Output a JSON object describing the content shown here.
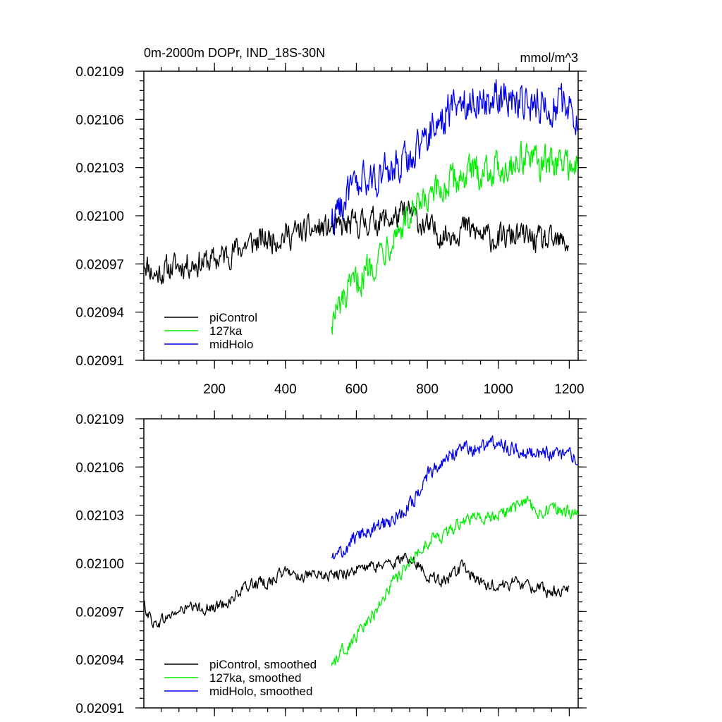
{
  "chart_data": [
    {
      "type": "line",
      "title": "0m-2000m DOPr, IND_18S-30N",
      "units": "mmol/m^3",
      "xlim": [
        1,
        1225
      ],
      "ylim": [
        0.02091,
        0.02109
      ],
      "xticks": [
        200,
        400,
        600,
        800,
        1000,
        1200
      ],
      "xtick_labels": [
        "200",
        "400",
        "600",
        "800",
        "1000",
        "1200"
      ],
      "yticks": [
        0.02091,
        0.02094,
        0.02097,
        0.021,
        0.02103,
        0.02106,
        0.02109
      ],
      "ytick_labels": [
        "0.02091",
        "0.02094",
        "0.02097",
        "0.02100",
        "0.02103",
        "0.02106",
        "0.02109"
      ],
      "legend_position": "bottom-left",
      "series": [
        {
          "name": "piControl",
          "color": "#000000",
          "noise": 8e-06,
          "x": [
            1,
            30,
            80,
            120,
            200,
            250,
            300,
            350,
            400,
            450,
            500,
            550,
            600,
            650,
            700,
            750,
            800,
            850,
            900,
            950,
            1000,
            1050,
            1100,
            1150,
            1200
          ],
          "values": [
            0.020973,
            0.020963,
            0.020968,
            0.02097,
            0.020972,
            0.020978,
            0.020983,
            0.020985,
            0.020988,
            0.02099,
            0.020992,
            0.020992,
            0.020995,
            0.020997,
            0.020998,
            0.021002,
            0.020992,
            0.020988,
            0.020993,
            0.020988,
            0.020985,
            0.020988,
            0.020985,
            0.020983,
            0.020983
          ]
        },
        {
          "name": "127ka",
          "color": "#00ee00",
          "noise": 1e-05,
          "x": [
            530,
            560,
            600,
            650,
            700,
            750,
            800,
            850,
            900,
            950,
            1000,
            1050,
            1080,
            1100,
            1150,
            1200,
            1225
          ],
          "values": [
            0.020935,
            0.020945,
            0.020958,
            0.020972,
            0.020988,
            0.020998,
            0.021008,
            0.021018,
            0.021025,
            0.021028,
            0.02103,
            0.021033,
            0.02104,
            0.021032,
            0.021033,
            0.021033,
            0.021029
          ]
        },
        {
          "name": "midHolo",
          "color": "#0000ee",
          "noise": 1.1e-05,
          "x": [
            530,
            560,
            600,
            650,
            700,
            750,
            800,
            850,
            900,
            950,
            1000,
            1050,
            1100,
            1150,
            1200,
            1225
          ],
          "values": [
            0.020998,
            0.021008,
            0.021018,
            0.021024,
            0.021028,
            0.021036,
            0.021052,
            0.021063,
            0.021072,
            0.021072,
            0.021075,
            0.021072,
            0.021069,
            0.021068,
            0.021068,
            0.021064
          ]
        }
      ]
    },
    {
      "type": "line",
      "title": "",
      "xlim": [
        1,
        1225
      ],
      "ylim": [
        0.02091,
        0.02109
      ],
      "xticks": [
        200,
        400,
        600,
        800,
        1000,
        1200
      ],
      "yticks": [
        0.02091,
        0.02094,
        0.02097,
        0.021,
        0.02103,
        0.02106,
        0.02109
      ],
      "ytick_labels": [
        "0.02091",
        "0.02094",
        "0.02097",
        "0.02100",
        "0.02103",
        "0.02106",
        "0.02109"
      ],
      "legend_position": "bottom-left",
      "series": [
        {
          "name": "piControl, smoothed",
          "color": "#000000",
          "noise": 3.5e-06,
          "x": [
            1,
            30,
            80,
            120,
            200,
            250,
            300,
            350,
            400,
            450,
            500,
            550,
            600,
            650,
            700,
            750,
            800,
            850,
            900,
            950,
            1000,
            1050,
            1100,
            1150,
            1200
          ],
          "values": [
            0.020974,
            0.020962,
            0.020968,
            0.020972,
            0.020972,
            0.020978,
            0.020987,
            0.020988,
            0.020995,
            0.020992,
            0.020992,
            0.020993,
            0.020996,
            0.020998,
            0.021,
            0.021004,
            0.020993,
            0.020988,
            0.020998,
            0.020987,
            0.020986,
            0.020988,
            0.020985,
            0.020982,
            0.020983
          ]
        },
        {
          "name": "127ka, smoothed",
          "color": "#00ee00",
          "noise": 4e-06,
          "x": [
            530,
            560,
            600,
            650,
            700,
            750,
            800,
            850,
            900,
            950,
            1000,
            1050,
            1080,
            1100,
            1150,
            1200,
            1225
          ],
          "values": [
            0.020935,
            0.020945,
            0.020955,
            0.020968,
            0.020988,
            0.021,
            0.021013,
            0.021018,
            0.021027,
            0.021029,
            0.02103,
            0.021035,
            0.02104,
            0.021032,
            0.021033,
            0.021033,
            0.021029
          ]
        },
        {
          "name": "midHolo, smoothed",
          "color": "#0000ee",
          "noise": 4.5e-06,
          "x": [
            530,
            560,
            600,
            650,
            700,
            750,
            800,
            850,
            900,
            950,
            1000,
            1050,
            1100,
            1150,
            1200,
            1225
          ],
          "values": [
            0.021002,
            0.021007,
            0.021017,
            0.021022,
            0.021027,
            0.021036,
            0.021055,
            0.021065,
            0.021073,
            0.021071,
            0.021075,
            0.021071,
            0.021068,
            0.021068,
            0.021068,
            0.021064
          ]
        }
      ]
    }
  ]
}
